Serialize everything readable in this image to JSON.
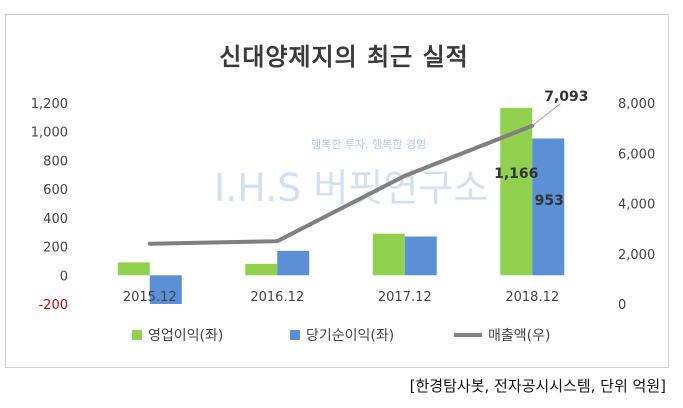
{
  "chart_data": {
    "type": "bar",
    "title": "신대양제지의 최근 실적",
    "categories": [
      "2015.12",
      "2016.12",
      "2017.12",
      "2018.12"
    ],
    "series": [
      {
        "name": "영업이익(좌)",
        "type": "bar",
        "axis": "left",
        "color": "#92d050",
        "values": [
          90,
          80,
          290,
          1166
        ]
      },
      {
        "name": "당기순이익(좌)",
        "type": "bar",
        "axis": "left",
        "color": "#5b8fd6",
        "values": [
          -200,
          170,
          270,
          953
        ]
      },
      {
        "name": "매출액(우)",
        "type": "line",
        "axis": "right",
        "color": "#808080",
        "values": [
          2400,
          2500,
          5100,
          7093
        ]
      }
    ],
    "left_axis": {
      "ylim": [
        -200,
        1200
      ],
      "ticks": [
        "-200",
        "0",
        "200",
        "400",
        "600",
        "800",
        "1,000",
        "1,200"
      ],
      "tick_values": [
        -200,
        0,
        200,
        400,
        600,
        800,
        1000,
        1200
      ]
    },
    "right_axis": {
      "ylim": [
        0,
        8000
      ],
      "ticks": [
        "0",
        "2,000",
        "4,000",
        "6,000",
        "8,000"
      ],
      "tick_values": [
        0,
        2000,
        4000,
        6000,
        8000
      ]
    },
    "data_labels": {
      "op_2018": "1,166",
      "net_2018": "953",
      "sales_2018": "7,093"
    },
    "legend": "bottom",
    "grid": false
  },
  "source_note": "[한경탐사봇, 전자공시시스템, 단위 억원]",
  "watermark": {
    "main": "I.H.S 버핏연구소",
    "tagline": "행복한 투자, 행복한 경영"
  }
}
